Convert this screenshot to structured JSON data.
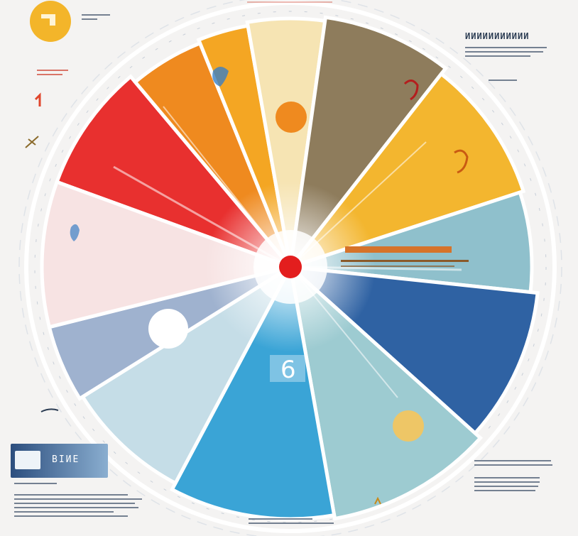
{
  "badge": {
    "label": "ВІИЕ"
  },
  "headline_right": "ИИИИИИИИИИИ",
  "side_glyph_left": "ᵹ",
  "wheel_labels": {
    "center_orange": "",
    "six_glyph": "6"
  },
  "colors": {
    "background": "#f4f3f2",
    "red": "#e8302f",
    "orange": "#ef8a1f",
    "amber": "#f4a623",
    "cream": "#f6e4b3",
    "khaki": "#8e7c5c",
    "gold": "#f3b62f",
    "teal": "#8fc0cc",
    "navy": "#2f62a3",
    "sea": "#9dcbd1",
    "sky": "#3aa4d6",
    "ice": "#c5dde7",
    "steel": "#9fb2cf",
    "blush": "#f7e3e3",
    "center_dot": "#e31e1e",
    "coin": "#f3b52a"
  },
  "icons": [
    "coin-icon",
    "center-dot-icon",
    "sun-icon",
    "bird-icon"
  ]
}
